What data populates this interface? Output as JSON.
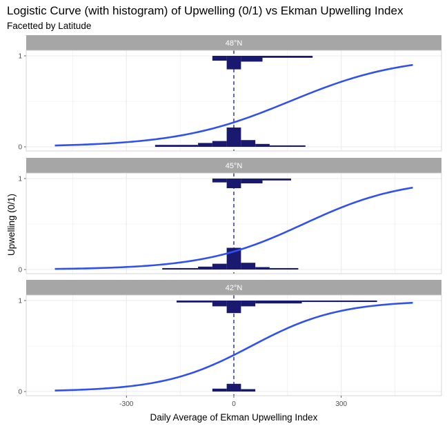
{
  "chart_data": {
    "type": "logistic-with-histogram",
    "title": "Logistic Curve (with histogram) of Upwelling (0/1) vs Ekman Upwelling Index",
    "subtitle": "Facetted by Latitude",
    "xlabel": "Daily Average of Ekman Upwelling Index",
    "ylabel": "Upwelling (0/1)",
    "xlim": [
      -580,
      580
    ],
    "x_ticks": [
      -300,
      0,
      300
    ],
    "x_tick_labels": [
      "-300",
      "0",
      "300"
    ],
    "y_ticks": [
      0,
      1
    ],
    "y_tick_labels": [
      "0",
      "1"
    ],
    "grid": true,
    "reference_line": {
      "x": 0,
      "style": "dashed",
      "color": "#191970"
    },
    "colors": {
      "curve": "#3050f0",
      "histogram": "#191970",
      "strip": "#a6a6a6",
      "grid": "#ebebeb",
      "panel_border": "#cccccc"
    },
    "curve_x_range": [
      -500,
      500
    ],
    "panels": [
      {
        "label": "48°N",
        "intercept": -1.0,
        "slope": 0.0064,
        "hist_bottom": [
          {
            "x0": -220,
            "x1": -100,
            "h": 0.004
          },
          {
            "x0": -100,
            "x1": -60,
            "h": 0.008
          },
          {
            "x0": -60,
            "x1": -20,
            "h": 0.012
          },
          {
            "x0": -20,
            "x1": 20,
            "h": 0.04
          },
          {
            "x0": 20,
            "x1": 60,
            "h": 0.014
          },
          {
            "x0": 60,
            "x1": 100,
            "h": 0.006
          },
          {
            "x0": 100,
            "x1": 200,
            "h": 0.003
          }
        ],
        "hist_top": [
          {
            "x0": -60,
            "x1": -20,
            "h": 0.01
          },
          {
            "x0": -20,
            "x1": 20,
            "h": 0.028
          },
          {
            "x0": 20,
            "x1": 80,
            "h": 0.012
          },
          {
            "x0": 80,
            "x1": 220,
            "h": 0.004
          }
        ]
      },
      {
        "label": "45°N",
        "intercept": -1.4,
        "slope": 0.0072,
        "hist_bottom": [
          {
            "x0": -200,
            "x1": -100,
            "h": 0.003
          },
          {
            "x0": -100,
            "x1": -60,
            "h": 0.006
          },
          {
            "x0": -60,
            "x1": -20,
            "h": 0.012
          },
          {
            "x0": -20,
            "x1": 20,
            "h": 0.045
          },
          {
            "x0": 20,
            "x1": 60,
            "h": 0.014
          },
          {
            "x0": 60,
            "x1": 100,
            "h": 0.005
          },
          {
            "x0": 100,
            "x1": 180,
            "h": 0.003
          }
        ],
        "hist_top": [
          {
            "x0": -60,
            "x1": -20,
            "h": 0.008
          },
          {
            "x0": -20,
            "x1": 20,
            "h": 0.02
          },
          {
            "x0": 20,
            "x1": 80,
            "h": 0.01
          },
          {
            "x0": 80,
            "x1": 160,
            "h": 0.004
          }
        ]
      },
      {
        "label": "42°N",
        "intercept": -0.4,
        "slope": 0.0082,
        "hist_bottom": [
          {
            "x0": -60,
            "x1": -20,
            "h": 0.006
          },
          {
            "x0": -20,
            "x1": 20,
            "h": 0.016
          },
          {
            "x0": 20,
            "x1": 60,
            "h": 0.005
          }
        ],
        "hist_top": [
          {
            "x0": -160,
            "x1": -60,
            "h": 0.004
          },
          {
            "x0": -60,
            "x1": -20,
            "h": 0.012
          },
          {
            "x0": -20,
            "x1": 20,
            "h": 0.026
          },
          {
            "x0": 20,
            "x1": 60,
            "h": 0.012
          },
          {
            "x0": 60,
            "x1": 190,
            "h": 0.006
          },
          {
            "x0": 190,
            "x1": 400,
            "h": 0.003
          }
        ]
      }
    ]
  }
}
